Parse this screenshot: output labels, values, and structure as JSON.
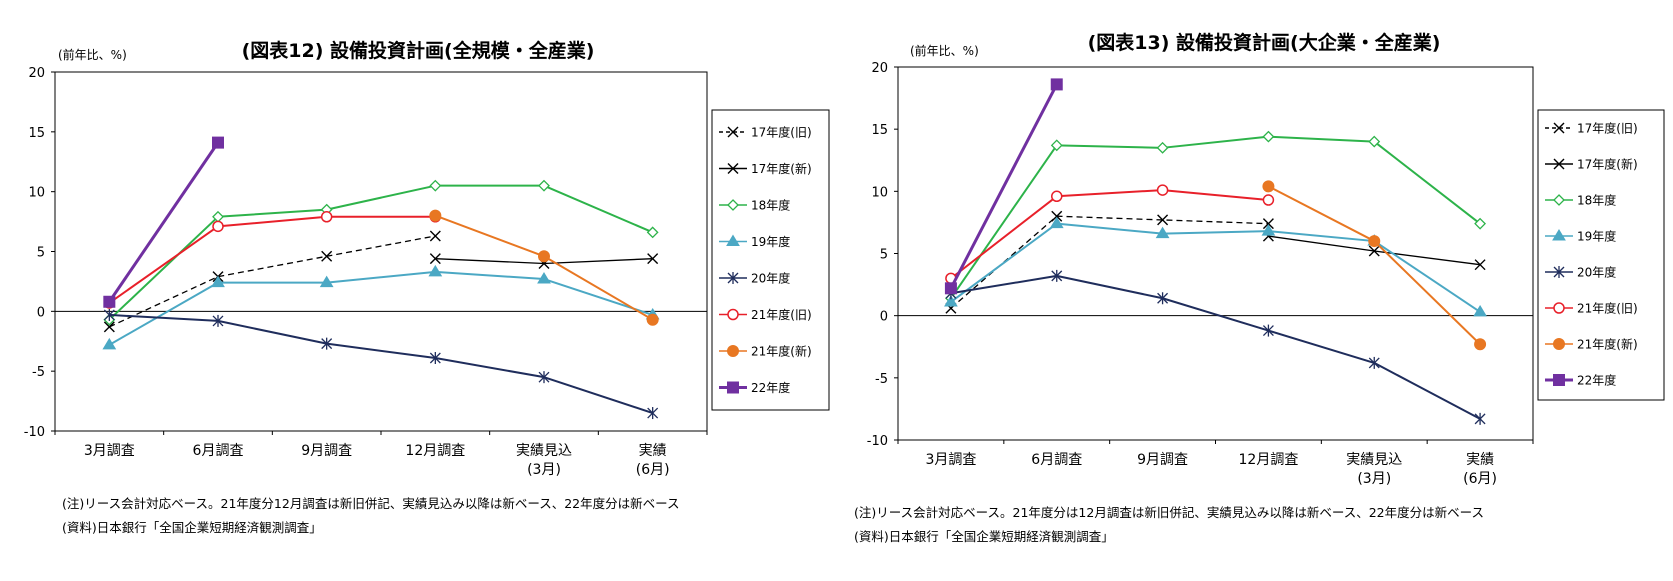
{
  "chart_data": [
    {
      "type": "line",
      "title": "(図表12)  設備投資計画(全規模・全産業)",
      "ylabel": "(前年比、%)",
      "ylim": [
        -10,
        20
      ],
      "yticks": [
        20,
        15,
        10,
        5,
        0,
        -5,
        -10
      ],
      "categories": [
        [
          "3月調査"
        ],
        [
          "6月調査"
        ],
        [
          "9月調査"
        ],
        [
          "12月調査"
        ],
        [
          "実績見込",
          "(3月)"
        ],
        [
          "実績",
          "(6月)"
        ]
      ],
      "legend_position": "right",
      "series": [
        {
          "name": "17年度(旧)",
          "color": "#000000",
          "dash": "6,4",
          "marker": "x",
          "values": [
            -1.3,
            2.9,
            4.6,
            6.3,
            null,
            null
          ]
        },
        {
          "name": "17年度(新)",
          "color": "#000000",
          "dash": "",
          "marker": "x",
          "values": [
            null,
            null,
            null,
            4.4,
            4.0,
            4.4
          ]
        },
        {
          "name": "18年度",
          "color": "#2db34a",
          "dash": "",
          "marker": "diamond",
          "values": [
            -0.7,
            7.9,
            8.5,
            10.5,
            10.5,
            6.6
          ]
        },
        {
          "name": "19年度",
          "color": "#4ba8c4",
          "dash": "",
          "marker": "triangle",
          "values": [
            -2.8,
            2.4,
            2.4,
            3.3,
            2.7,
            -0.3
          ]
        },
        {
          "name": "20年度",
          "color": "#1f2d5c",
          "dash": "",
          "marker": "star",
          "values": [
            -0.3,
            -0.8,
            -2.7,
            -3.9,
            -5.5,
            -8.5
          ]
        },
        {
          "name": "21年度(旧)",
          "color": "#e8202a",
          "dash": "",
          "marker": "circle-open",
          "values": [
            0.7,
            7.1,
            7.9,
            7.9,
            null,
            null
          ]
        },
        {
          "name": "21年度(新)",
          "color": "#e87722",
          "dash": "",
          "marker": "circle",
          "values": [
            null,
            null,
            null,
            8.0,
            4.6,
            -0.7
          ]
        },
        {
          "name": "22年度",
          "color": "#7030a0",
          "dash": "",
          "marker": "square",
          "values": [
            0.8,
            14.1,
            null,
            null,
            null,
            null
          ]
        }
      ]
    },
    {
      "type": "line",
      "title": "(図表13)  設備投資計画(大企業・全産業)",
      "ylabel": "(前年比、%)",
      "ylim": [
        -10,
        20
      ],
      "yticks": [
        20,
        15,
        10,
        5,
        0,
        -5,
        -10
      ],
      "categories": [
        [
          "3月調査"
        ],
        [
          "6月調査"
        ],
        [
          "9月調査"
        ],
        [
          "12月調査"
        ],
        [
          "実績見込",
          "(3月)"
        ],
        [
          "実績",
          "(6月)"
        ]
      ],
      "legend_position": "right",
      "series": [
        {
          "name": "17年度(旧)",
          "color": "#000000",
          "dash": "6,4",
          "marker": "x",
          "values": [
            0.6,
            8.0,
            7.7,
            7.4,
            null,
            null
          ]
        },
        {
          "name": "17年度(新)",
          "color": "#000000",
          "dash": "",
          "marker": "x",
          "values": [
            null,
            null,
            null,
            6.4,
            5.2,
            4.1
          ]
        },
        {
          "name": "18年度",
          "color": "#2db34a",
          "dash": "",
          "marker": "diamond",
          "values": [
            1.4,
            13.7,
            13.5,
            14.4,
            14.0,
            7.4
          ]
        },
        {
          "name": "19年度",
          "color": "#4ba8c4",
          "dash": "",
          "marker": "triangle",
          "values": [
            1.1,
            7.4,
            6.6,
            6.8,
            6.0,
            0.3
          ]
        },
        {
          "name": "20年度",
          "color": "#1f2d5c",
          "dash": "",
          "marker": "star",
          "values": [
            1.8,
            3.2,
            1.4,
            -1.2,
            -3.8,
            -8.3
          ]
        },
        {
          "name": "21年度(旧)",
          "color": "#e8202a",
          "dash": "",
          "marker": "circle-open",
          "values": [
            3.0,
            9.6,
            10.1,
            9.3,
            null,
            null
          ]
        },
        {
          "name": "21年度(新)",
          "color": "#e87722",
          "dash": "",
          "marker": "circle",
          "values": [
            null,
            null,
            null,
            10.4,
            6.0,
            -2.3
          ]
        },
        {
          "name": "22年度",
          "color": "#7030a0",
          "dash": "",
          "marker": "square",
          "values": [
            2.2,
            18.6,
            null,
            null,
            null,
            null
          ]
        }
      ]
    }
  ],
  "notes": [
    {
      "note": "(注)リース会計対応ベース。21年度分12月調査は新旧併記、実績見込み以降は新ベース、22年度分は新ベース",
      "source": "(資料)日本銀行「全国企業短期経済観測調査」"
    },
    {
      "note": "(注)リース会計対応ベース。21年度分は12月調査は新旧併記、実績見込み以降は新ベース、22年度分は新ベース",
      "source": "(資料)日本銀行「全国企業短期経済観測調査」"
    }
  ]
}
